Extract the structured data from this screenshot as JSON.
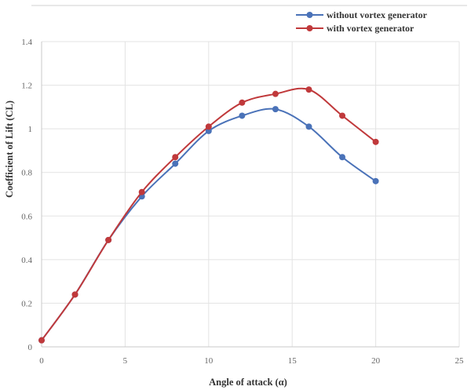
{
  "chart_data": {
    "type": "line",
    "xlabel": "Angle of attack (α)",
    "ylabel": "Coefficient of Lift (CL)",
    "xlim": [
      0,
      25
    ],
    "ylim": [
      0,
      1.4
    ],
    "xticks": [
      "0",
      "5",
      "10",
      "15",
      "20",
      "25"
    ],
    "yticks": [
      "0",
      "0.2",
      "0.4",
      "0.6",
      "0.8",
      "1",
      "1.2",
      "1.4"
    ],
    "grid": true,
    "legend_position": "top-right",
    "series": [
      {
        "name": "without vortex generator",
        "color": "#4a72b8",
        "x": [
          0,
          2,
          4,
          6,
          8,
          10,
          12,
          14,
          16,
          18,
          20
        ],
        "y": [
          0.03,
          0.24,
          0.49,
          0.69,
          0.84,
          0.99,
          1.06,
          1.09,
          1.01,
          0.87,
          0.76
        ]
      },
      {
        "name": "with vortex generator",
        "color": "#c0393b",
        "x": [
          0,
          2,
          4,
          6,
          8,
          10,
          12,
          14,
          16,
          18,
          20
        ],
        "y": [
          0.03,
          0.24,
          0.49,
          0.71,
          0.87,
          1.01,
          1.12,
          1.16,
          1.18,
          1.06,
          0.94
        ]
      }
    ]
  }
}
